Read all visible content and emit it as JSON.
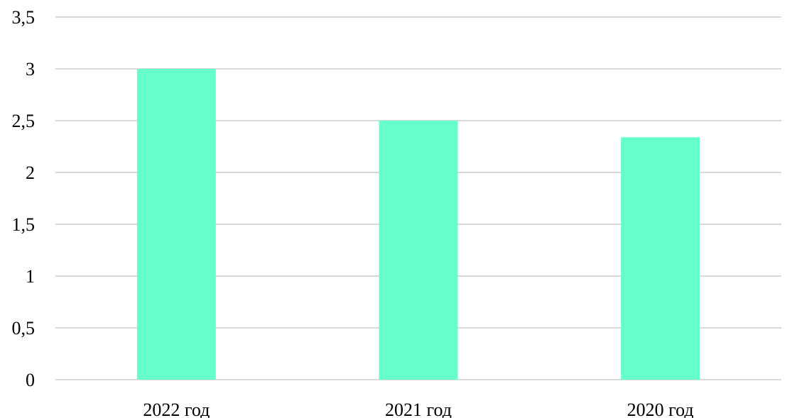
{
  "chart_data": {
    "type": "bar",
    "title": "",
    "xlabel": "",
    "ylabel": "",
    "categories": [
      "2022 год",
      "2021 год",
      "2020 год"
    ],
    "values": [
      3.0,
      2.5,
      2.34
    ],
    "ylim": [
      0,
      3.5
    ],
    "yticks": [
      "0",
      "0,5",
      "1",
      "1,5",
      "2",
      "2,5",
      "3",
      "3,5"
    ],
    "ytick_values": [
      0,
      0.5,
      1,
      1.5,
      2,
      2.5,
      3,
      3.5
    ],
    "grid": true,
    "legend": "none",
    "colors": {
      "bar": "#66FFCC",
      "grid": "#D9D9D9",
      "axis": "#D9D9D9",
      "text": "#000000"
    }
  }
}
